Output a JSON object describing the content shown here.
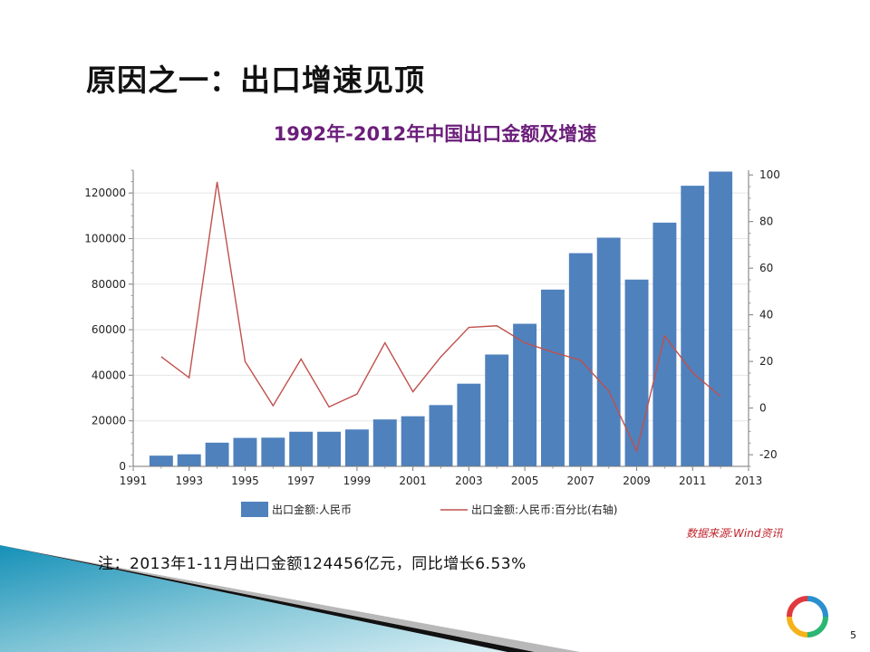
{
  "slide": {
    "heading": "原因之一：出口增速见顶",
    "note": "注：2013年1-11月出口金额124456亿元，同比增长6.53%",
    "source": "数据来源:Wind资讯",
    "page_number": "5"
  },
  "colors": {
    "bar": "#4f81bd",
    "line": "#c0504d",
    "title": "#6b1e7a",
    "source": "#c0242b",
    "deco_teal": "#1a8fb5"
  },
  "chart_data": {
    "type": "bar",
    "title": "1992年-2012年中国出口金额及增速",
    "x": [
      1992,
      1993,
      1994,
      1995,
      1996,
      1997,
      1998,
      1999,
      2000,
      2001,
      2002,
      2003,
      2004,
      2005,
      2006,
      2007,
      2008,
      2009,
      2010,
      2011,
      2012
    ],
    "x_ticks": [
      "1991",
      "1993",
      "1995",
      "1997",
      "1999",
      "2001",
      "2003",
      "2005",
      "2007",
      "2009",
      "2011",
      "2013"
    ],
    "xlim": [
      1991,
      2013
    ],
    "ylim_left": [
      0,
      130000
    ],
    "yticks_left": [
      "0",
      "20000",
      "40000",
      "60000",
      "80000",
      "100000",
      "120000"
    ],
    "ylim_right": [
      -25,
      102
    ],
    "yticks_right": [
      "-20",
      "0",
      "20",
      "40",
      "60",
      "80",
      "100"
    ],
    "grid": true,
    "legend_position": "bottom",
    "series": [
      {
        "name": "出口金额:人民币",
        "kind": "bar",
        "axis": "left",
        "values": [
          4700,
          5300,
          10400,
          12500,
          12600,
          15200,
          15200,
          16200,
          20600,
          22000,
          26900,
          36300,
          49100,
          62600,
          77600,
          93600,
          100400,
          82000,
          107000,
          123200,
          129400
        ]
      },
      {
        "name": "出口金额:人民币:百分比(右轴)",
        "kind": "line",
        "axis": "right",
        "values": [
          22,
          13,
          97,
          20,
          1,
          21,
          0.5,
          6,
          28,
          7,
          22,
          34.6,
          35.3,
          28,
          24,
          20.5,
          7.3,
          -18.4,
          31,
          15.2,
          5
        ]
      }
    ]
  }
}
